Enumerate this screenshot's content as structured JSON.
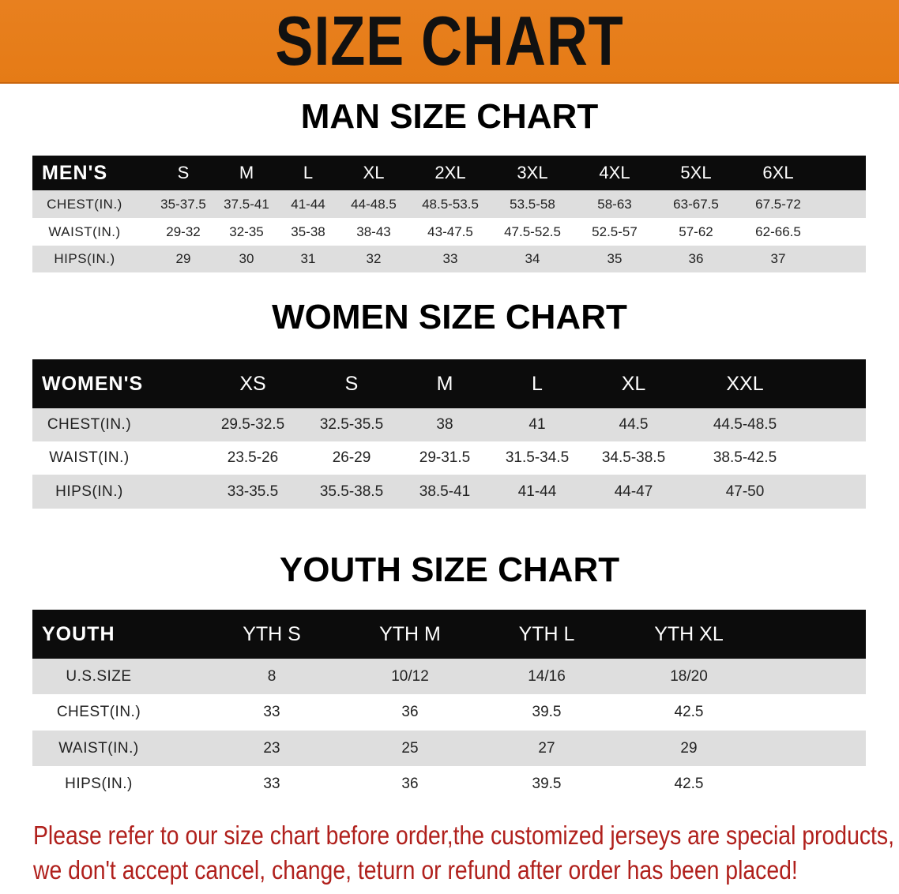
{
  "banner": {
    "title": "SIZE CHART",
    "color": "#e67d18"
  },
  "men": {
    "title": "MAN SIZE CHART",
    "header": [
      "MEN'S",
      "S",
      "M",
      "L",
      "XL",
      "2XL",
      "3XL",
      "4XL",
      "5XL",
      "6XL"
    ],
    "rows": [
      [
        "CHEST(IN.)",
        "35-37.5",
        "37.5-41",
        "41-44",
        "44-48.5",
        "48.5-53.5",
        "53.5-58",
        "58-63",
        "63-67.5",
        "67.5-72"
      ],
      [
        "WAIST(IN.)",
        "29-32",
        "32-35",
        "35-38",
        "38-43",
        "43-47.5",
        "47.5-52.5",
        "52.5-57",
        "57-62",
        "62-66.5"
      ],
      [
        "HIPS(IN.)",
        "29",
        "30",
        "31",
        "32",
        "33",
        "34",
        "35",
        "36",
        "37"
      ]
    ]
  },
  "women": {
    "title": "WOMEN SIZE CHART",
    "header": [
      "WOMEN'S",
      "XS",
      "S",
      "M",
      "L",
      "XL",
      "XXL"
    ],
    "rows": [
      [
        "CHEST(IN.)",
        "29.5-32.5",
        "32.5-35.5",
        "38",
        "41",
        "44.5",
        "44.5-48.5"
      ],
      [
        "WAIST(IN.)",
        "23.5-26",
        "26-29",
        "29-31.5",
        "31.5-34.5",
        "34.5-38.5",
        "38.5-42.5"
      ],
      [
        "HIPS(IN.)",
        "33-35.5",
        "35.5-38.5",
        "38.5-41",
        "41-44",
        "44-47",
        "47-50"
      ]
    ]
  },
  "youth": {
    "title": "YOUTH SIZE CHART",
    "header": [
      "YOUTH",
      "YTH S",
      "YTH M",
      "YTH L",
      "YTH XL"
    ],
    "rows": [
      [
        "U.S.SIZE",
        "8",
        "10/12",
        "14/16",
        "18/20"
      ],
      [
        "CHEST(IN.)",
        "33",
        "36",
        "39.5",
        "42.5"
      ],
      [
        "WAIST(IN.)",
        "23",
        "25",
        "27",
        "29"
      ],
      [
        "HIPS(IN.)",
        "33",
        "36",
        "39.5",
        "42.5"
      ]
    ]
  },
  "notice": {
    "line1": "Please refer to our size chart before order,the customized jerseys are special products,",
    "line2": "we don't accept cancel, change, teturn or refund after order has been placed!",
    "color": "#b0201c"
  }
}
